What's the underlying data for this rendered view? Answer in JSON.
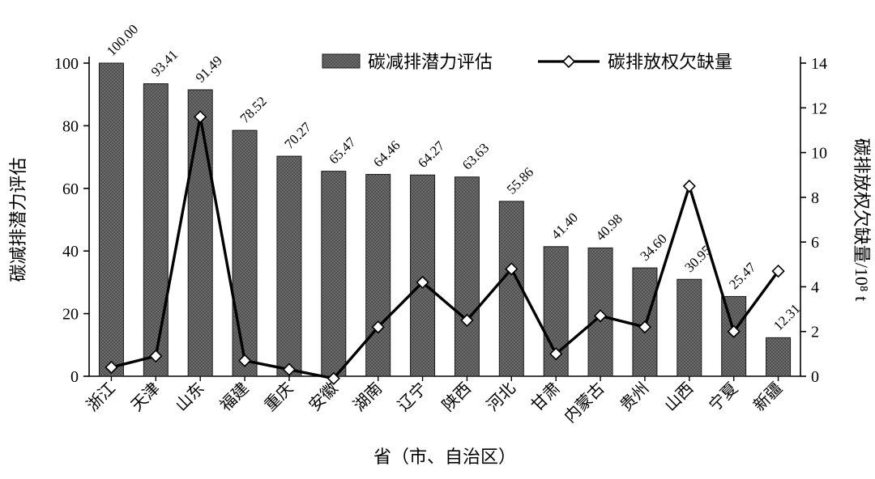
{
  "chart_data": {
    "type": "bar",
    "subtype": "bar-line-combo",
    "title": "",
    "xlabel": "省（市、自治区）",
    "categories": [
      "浙江",
      "天津",
      "山东",
      "福建",
      "重庆",
      "安徽",
      "湖南",
      "辽宁",
      "陕西",
      "河北",
      "甘肃",
      "内蒙古",
      "贵州",
      "山西",
      "宁夏",
      "新疆"
    ],
    "series": [
      {
        "name": "碳减排潜力评估",
        "type": "bar",
        "axis": "left",
        "values": [
          100.0,
          93.41,
          91.49,
          78.52,
          70.27,
          65.47,
          64.46,
          64.27,
          63.63,
          55.86,
          41.4,
          40.98,
          34.6,
          30.95,
          25.47,
          12.31
        ],
        "value_labels": [
          "100.00",
          "93.41",
          "91.49",
          "78.52",
          "70.27",
          "65.47",
          "64.46",
          "64.27",
          "63.63",
          "55.86",
          "41.40",
          "40.98",
          "34.60",
          "30.95",
          "25.47",
          "12.31"
        ]
      },
      {
        "name": "碳排放权欠缺量",
        "type": "line",
        "axis": "right",
        "values": [
          0.4,
          0.9,
          11.6,
          0.7,
          0.3,
          -0.1,
          2.2,
          4.2,
          2.5,
          4.8,
          1.0,
          2.7,
          2.2,
          8.5,
          2.0,
          4.7
        ]
      }
    ],
    "left_axis": {
      "label": "碳减排潜力评估",
      "range": [
        0,
        100
      ],
      "ticks": [
        0,
        20,
        40,
        60,
        80,
        100
      ]
    },
    "right_axis": {
      "label": "碳排放权欠缺量/10⁸ t",
      "range": [
        0,
        14
      ],
      "ticks": [
        0,
        2,
        4,
        6,
        8,
        10,
        12,
        14
      ]
    },
    "legend": {
      "position": "top-center",
      "entries": [
        {
          "label": "碳减排潜力评估",
          "marker": "bar-swatch"
        },
        {
          "label": "碳排放权欠缺量",
          "marker": "line-diamond"
        }
      ]
    },
    "grid": false,
    "colors": {
      "bar_fill": "#4f4f4f",
      "bar_dot": "#828282",
      "bar_stroke": "#1a1a1a",
      "line": "#000000",
      "marker_fill": "#ffffff",
      "marker_stroke": "#000000",
      "axis": "#000000",
      "background": "#ffffff"
    }
  }
}
